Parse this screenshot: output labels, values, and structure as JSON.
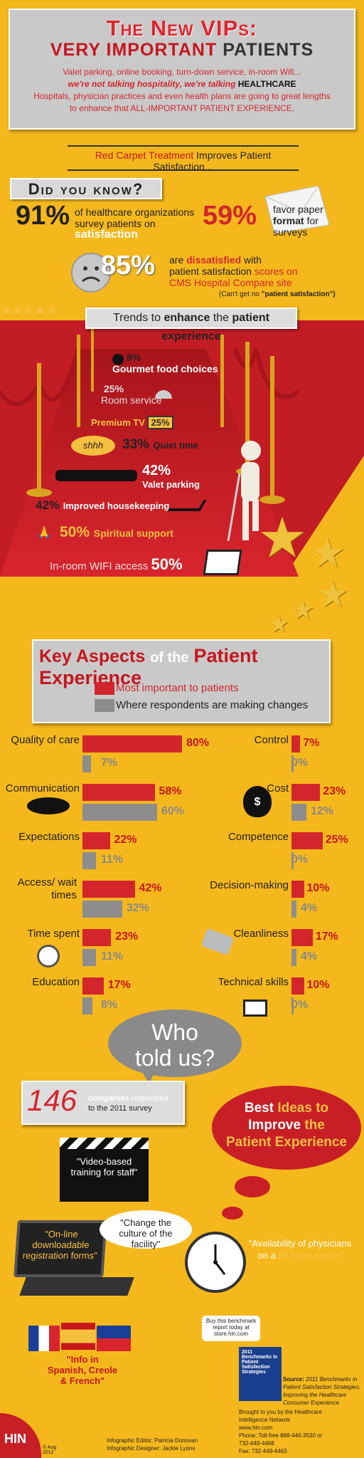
{
  "header": {
    "title1": "The New VIPs:",
    "title2a": "VERY IMPORTANT",
    "title2b": "PATIENTS",
    "line1": "Valet parking, online booking, turn-down service, in-room Wifi...",
    "line2a": "we're not talking hospitality, we're talking",
    "line2b": "HEALTHCARE",
    "line3": "Hospitals, physician practices and even health plans are going to great lengths",
    "line4": "to enhance that ALL-IMPORTANT PATIENT EXPERIENCE."
  },
  "subtitle": {
    "red": "Red Carpet Treatment",
    "rest": "Improves Patient Satisfaction..."
  },
  "did_you_know": {
    "heading": "Did you know?",
    "stat1": {
      "value": "91%",
      "text1": "of healthcare organizations",
      "text2": "survey patients on",
      "emph": "satisfaction"
    },
    "stat2": {
      "value": "59%",
      "text1": "favor paper",
      "bold": "format",
      "text2": "for",
      "text3": "surveys"
    },
    "stat3": {
      "value": "85%",
      "text1": "are",
      "emph": "dissatisfied",
      "text2": "with",
      "text3": "patient satisfaction",
      "text4": "scores on",
      "text5": "CMS Hospital Compare site",
      "note1": "(Can't get no",
      "note2": "\"patient satisfaction\")"
    }
  },
  "trends": {
    "label1": "Trends to",
    "label2": "enhance",
    "label3": "the",
    "label4": "patient experience",
    "items": [
      {
        "pct": "8%",
        "label": "Gourmet food choices"
      },
      {
        "pct": "25%",
        "label": "Room service"
      },
      {
        "pct": "25%",
        "label": "Premium TV"
      },
      {
        "pct": "33%",
        "label": "Quiet time",
        "bubble": "shhh"
      },
      {
        "pct": "42%",
        "label": "Valet parking"
      },
      {
        "pct": "42%",
        "label": "Improved housekeeping"
      },
      {
        "pct": "50%",
        "label": "Spiritual support"
      },
      {
        "pct": "50%",
        "label": "In-room WIFI access"
      }
    ]
  },
  "key": {
    "title1": "Key Aspects",
    "title2": "of the",
    "title3": "Patient Experience",
    "legend_red": "Most important to patients",
    "legend_gray": "Where respondents are making changes",
    "colors": {
      "red": "#d3262c",
      "gray": "#8d8d8d"
    }
  },
  "chart_data": {
    "type": "bar",
    "series": [
      {
        "name": "Most important to patients"
      },
      {
        "name": "Where respondents are making changes"
      }
    ],
    "left": [
      {
        "label": "Quality of care",
        "red": 80,
        "gray": 7
      },
      {
        "label": "Communication",
        "red": 58,
        "gray": 60
      },
      {
        "label": "Expectations",
        "red": 22,
        "gray": 11
      },
      {
        "label": "Access/ wait times",
        "red": 42,
        "gray": 32
      },
      {
        "label": "Time spent",
        "red": 23,
        "gray": 11
      },
      {
        "label": "Education",
        "red": 17,
        "gray": 8
      }
    ],
    "right": [
      {
        "label": "Control",
        "red": 7,
        "gray": 0
      },
      {
        "label": "Cost",
        "red": 23,
        "gray": 12
      },
      {
        "label": "Competence",
        "red": 25,
        "gray": 0
      },
      {
        "label": "Decision-making",
        "red": 10,
        "gray": 4
      },
      {
        "label": "Cleanliness",
        "red": 17,
        "gray": 4
      },
      {
        "label": "Technical skills",
        "red": 10,
        "gray": 0
      }
    ]
  },
  "who": {
    "line1": "Who",
    "line2": "told us?"
  },
  "responded": {
    "number": "146",
    "bold": "companies",
    "text1": "responded",
    "text2": "to the 2011 survey"
  },
  "best": {
    "line1": "Best",
    "line1b": "Ideas to",
    "line2": "Improve",
    "line2b": "the",
    "line3": "Patient Experience"
  },
  "ideas": {
    "video": "\"Video-based training for staff\"",
    "online": "\"On-line downloadable registration forms\"",
    "culture": "\"Change the culture of the facility\"",
    "avail1": "\"Availability of physicians",
    "avail2": "on a",
    "avail3": "24-hour cycle\"",
    "lang": "\"Info in Spanish, Creole & French\""
  },
  "buy": {
    "text": "Buy this benchmark report today at store.hin.com",
    "book": "2011 Benchmarks in Patient Satisfaction Strategies"
  },
  "source": {
    "label": "Source:",
    "text": "2011 Benchmarks in Patient Satisfaction Strategies: Improving the Healthcare Consumer Experience"
  },
  "brought": {
    "l1": "Brought to you by the Healthcare",
    "l2": "Intelligence Network",
    "l3": "www.hin.com",
    "l4": "Phone: Toll-free 888-446-3530 or",
    "l5": "732-449-4468",
    "l6": "Fax: 732-449-4463"
  },
  "credits": {
    "editor": "Infographic Editor: Patricia Donovan",
    "designer": "Infographic Designer: Jackie Lyons"
  },
  "logo": {
    "text": "HIN",
    "copy": "© Aug 2012"
  }
}
